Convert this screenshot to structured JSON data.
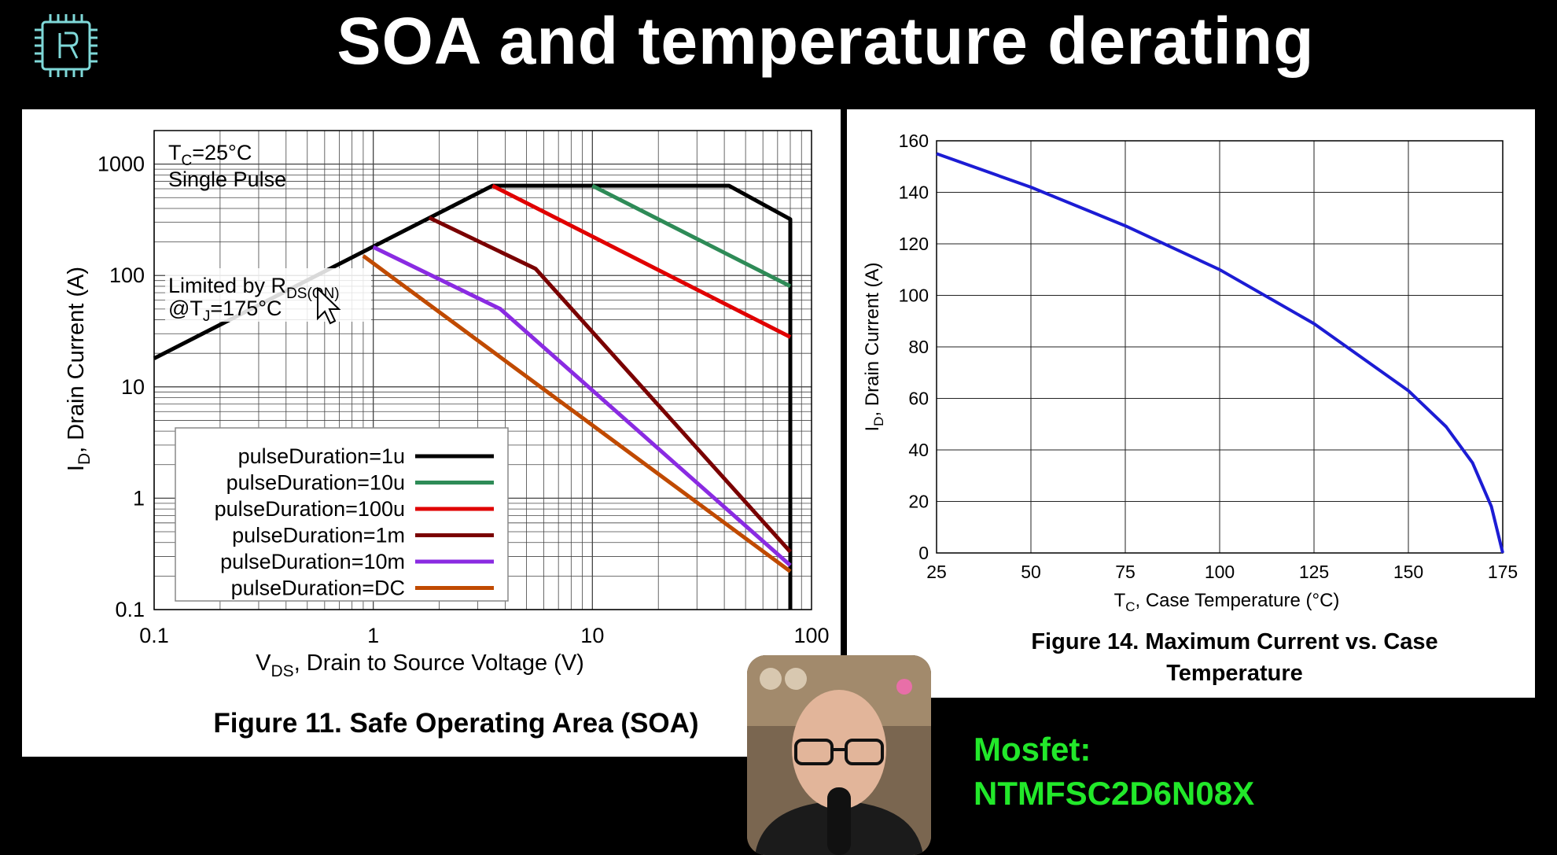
{
  "slide": {
    "title": "SOA and temperature derating",
    "mosfet_label": "Mosfet:",
    "mosfet_part": "NTMFSC2D6N08X"
  },
  "colors": {
    "background": "#000000",
    "accent_green": "#22e82a",
    "logo": "#7fd8d8"
  },
  "icons": {
    "logo": "chip-logo-icon",
    "cursor": "mouse-pointer-icon"
  },
  "chart_data": [
    {
      "type": "line",
      "title": "Figure 11. Safe Operating Area (SOA)",
      "xlabel_main": "V",
      "xlabel_sub": "DS",
      "xlabel_rest": ", Drain to Source Voltage (V)",
      "ylabel_main": "I",
      "ylabel_sub": "D",
      "ylabel_rest": ", Drain Current (A)",
      "xscale": "log",
      "yscale": "log",
      "xlim": [
        0.1,
        100
      ],
      "ylim": [
        0.1,
        2000
      ],
      "xticks": [
        "0.1",
        "1",
        "10",
        "100"
      ],
      "yticks": [
        "0.1",
        "1",
        "10",
        "100",
        "1000"
      ],
      "grid": true,
      "legend_position": "bottom-left",
      "annotation_tc_main": "T",
      "annotation_tc_sub": "C",
      "annotation_tc_rest": "=25°C",
      "annotation_pulse": "Single Pulse",
      "annotation_limit_main": "Limited by R",
      "annotation_limit_sub": "DS(ON)",
      "annotation_tj_main": "@T",
      "annotation_tj_sub": "J",
      "annotation_tj_rest": "=175°C",
      "series": [
        {
          "name": "pulseDuration=1u",
          "color": "#000000",
          "points": [
            [
              0.1,
              18
            ],
            [
              3.5,
              640
            ],
            [
              42,
              640
            ],
            [
              80,
              320
            ],
            [
              80,
              0.1
            ]
          ]
        },
        {
          "name": "pulseDuration=10u",
          "color": "#2e8b57",
          "points": [
            [
              10,
              640
            ],
            [
              80,
              80
            ]
          ]
        },
        {
          "name": "pulseDuration=100u",
          "color": "#e00000",
          "points": [
            [
              3.5,
              640
            ],
            [
              80,
              28
            ]
          ]
        },
        {
          "name": "pulseDuration=1m",
          "color": "#7a0000",
          "points": [
            [
              1.8,
              330
            ],
            [
              5.5,
              115
            ],
            [
              80,
              0.33
            ]
          ]
        },
        {
          "name": "pulseDuration=10m",
          "color": "#8a2be2",
          "points": [
            [
              1.0,
              180
            ],
            [
              3.8,
              50
            ],
            [
              80,
              0.25
            ]
          ]
        },
        {
          "name": "pulseDuration=DC",
          "color": "#c04a00",
          "points": [
            [
              0.9,
              150
            ],
            [
              80,
              0.22
            ]
          ]
        }
      ]
    },
    {
      "type": "line",
      "title_line1": "Figure 14. Maximum Current vs. Case",
      "title_line2": "Temperature",
      "xlabel_main": "T",
      "xlabel_sub": "C",
      "xlabel_rest": ", Case Temperature (°C)",
      "ylabel_main": "I",
      "ylabel_sub": "D",
      "ylabel_rest": ", Drain Current (A)",
      "xlim": [
        25,
        175
      ],
      "ylim": [
        0,
        160
      ],
      "xticks": [
        "25",
        "50",
        "75",
        "100",
        "125",
        "150",
        "175"
      ],
      "yticks": [
        "0",
        "20",
        "40",
        "60",
        "80",
        "100",
        "120",
        "140",
        "160"
      ],
      "grid": true,
      "series": [
        {
          "color": "#1c1cd4",
          "points": [
            [
              25,
              155
            ],
            [
              50,
              142
            ],
            [
              75,
              127
            ],
            [
              100,
              110
            ],
            [
              125,
              89
            ],
            [
              150,
              63
            ],
            [
              160,
              49
            ],
            [
              167,
              35
            ],
            [
              172,
              18
            ],
            [
              175,
              0
            ]
          ]
        }
      ]
    }
  ]
}
